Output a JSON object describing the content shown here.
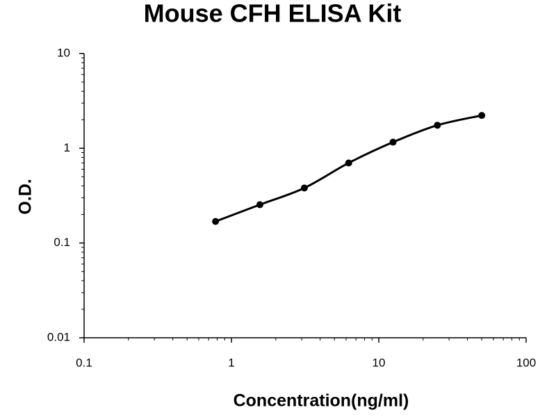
{
  "chart_data": {
    "type": "line",
    "title": "Mouse CFH ELISA Kit",
    "x_label": "Concentration(ng/ml)",
    "y_label": "O.D.",
    "x_log": true,
    "y_log": true,
    "markers": true,
    "smooth": true,
    "xlim": [
      0.1,
      100
    ],
    "ylim": [
      0.01,
      10
    ],
    "xticks": [
      0.1,
      1,
      10,
      100
    ],
    "yticks": [
      0.01,
      0.1,
      1,
      10
    ],
    "series": [
      {
        "color": "#000000",
        "x": [
          0.78,
          1.56,
          3.125,
          6.25,
          12.5,
          25,
          50
        ],
        "values": [
          0.169,
          0.254,
          0.381,
          0.7,
          1.16,
          1.75,
          2.22
        ]
      }
    ]
  }
}
